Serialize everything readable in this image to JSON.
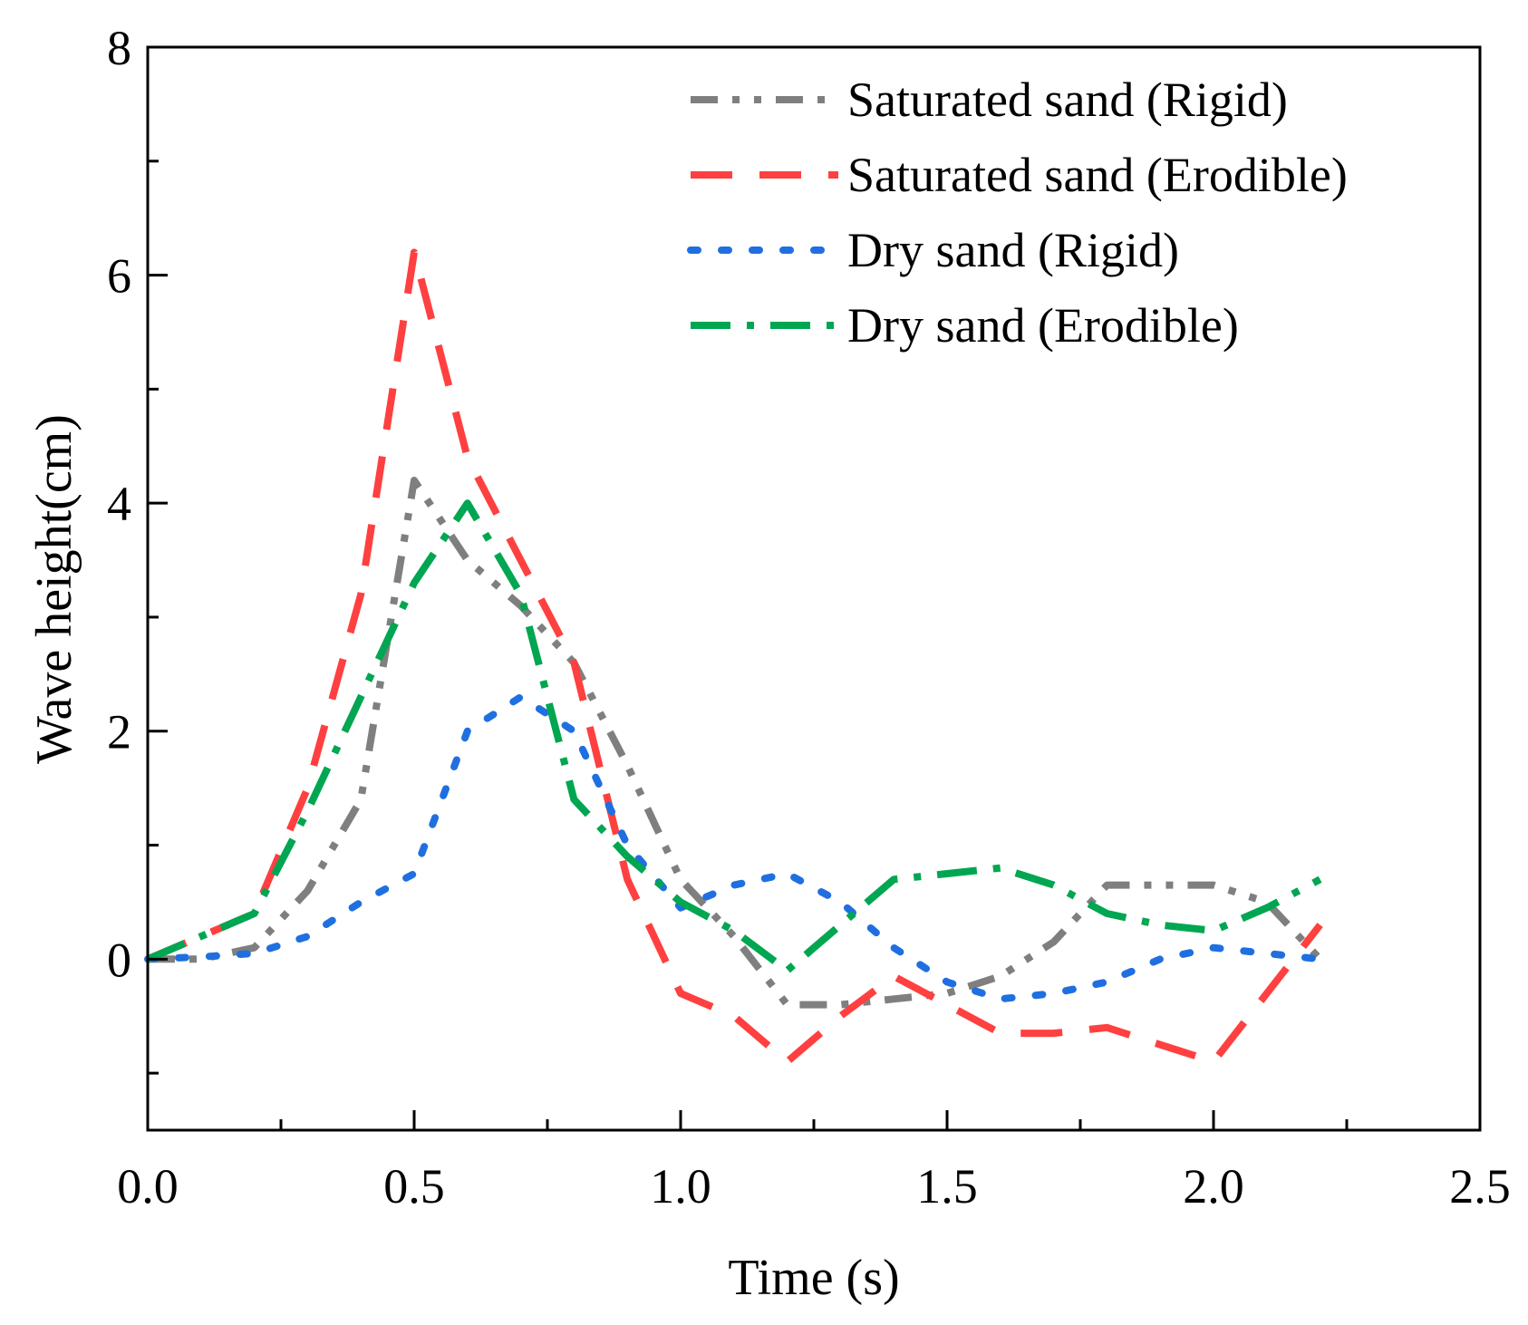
{
  "chart_data": {
    "type": "line",
    "title": "",
    "xlabel": "Time (s)",
    "ylabel": "Wave height(cm)",
    "xlim": [
      0.0,
      2.5
    ],
    "ylim": [
      -1.5,
      8
    ],
    "x_ticks": [
      0.0,
      0.5,
      1.0,
      1.5,
      2.0,
      2.5
    ],
    "x_tick_labels": [
      "0.0",
      "0.5",
      "1.0",
      "1.5",
      "2.0",
      "2.5"
    ],
    "x_minor_ticks": [
      0.25,
      0.75,
      1.25,
      1.75,
      2.25
    ],
    "y_ticks": [
      0,
      2,
      4,
      6,
      8
    ],
    "y_tick_labels": [
      "0",
      "2",
      "4",
      "6",
      "8"
    ],
    "y_minor_ticks": [
      -1,
      1,
      3,
      5,
      7
    ],
    "grid": false,
    "legend_position": "top-right",
    "series": [
      {
        "name": "Saturated sand (Rigid)",
        "color": "#7f7f7f",
        "style": "dash-dot-dot",
        "x": [
          0.0,
          0.1,
          0.2,
          0.3,
          0.4,
          0.5,
          0.6,
          0.7,
          0.8,
          0.9,
          1.0,
          1.1,
          1.2,
          1.3,
          1.4,
          1.5,
          1.6,
          1.7,
          1.8,
          1.9,
          2.0,
          2.1,
          2.2
        ],
        "values": [
          0.0,
          0.0,
          0.1,
          0.6,
          1.4,
          4.2,
          3.5,
          3.1,
          2.6,
          1.7,
          0.7,
          0.2,
          -0.4,
          -0.4,
          -0.35,
          -0.3,
          -0.15,
          0.15,
          0.65,
          0.65,
          0.65,
          0.5,
          0.0
        ]
      },
      {
        "name": "Saturated sand (Erodible)",
        "color": "#ff4040",
        "style": "dash",
        "x": [
          0.0,
          0.1,
          0.2,
          0.3,
          0.4,
          0.5,
          0.6,
          0.7,
          0.8,
          0.9,
          1.0,
          1.1,
          1.2,
          1.3,
          1.4,
          1.5,
          1.6,
          1.7,
          1.8,
          1.9,
          2.0,
          2.1,
          2.2
        ],
        "values": [
          0.0,
          0.2,
          0.4,
          1.5,
          3.2,
          6.2,
          4.4,
          3.5,
          2.6,
          0.7,
          -0.3,
          -0.5,
          -0.9,
          -0.5,
          -0.15,
          -0.4,
          -0.65,
          -0.65,
          -0.6,
          -0.75,
          -0.9,
          -0.3,
          0.3
        ]
      },
      {
        "name": "Dry sand (Rigid)",
        "color": "#1f6fe0",
        "style": "dot",
        "x": [
          0.0,
          0.1,
          0.2,
          0.3,
          0.4,
          0.5,
          0.6,
          0.7,
          0.8,
          0.9,
          1.0,
          1.1,
          1.2,
          1.3,
          1.4,
          1.5,
          1.6,
          1.7,
          1.8,
          1.9,
          2.0,
          2.1,
          2.2
        ],
        "values": [
          0.0,
          0.02,
          0.05,
          0.2,
          0.5,
          0.75,
          2.0,
          2.3,
          2.0,
          1.0,
          0.45,
          0.65,
          0.75,
          0.5,
          0.1,
          -0.2,
          -0.35,
          -0.3,
          -0.2,
          0.0,
          0.1,
          0.05,
          0.0
        ]
      },
      {
        "name": "Dry sand (Erodible)",
        "color": "#00a651",
        "style": "dash-dot",
        "x": [
          0.0,
          0.1,
          0.2,
          0.3,
          0.4,
          0.5,
          0.6,
          0.7,
          0.8,
          0.9,
          1.0,
          1.1,
          1.2,
          1.3,
          1.4,
          1.5,
          1.6,
          1.7,
          1.8,
          1.9,
          2.0,
          2.1,
          2.2
        ],
        "values": [
          0.0,
          0.2,
          0.4,
          1.3,
          2.3,
          3.3,
          4.0,
          3.2,
          1.4,
          0.9,
          0.5,
          0.25,
          -0.1,
          0.3,
          0.7,
          0.75,
          0.8,
          0.65,
          0.4,
          0.3,
          0.25,
          0.45,
          0.7
        ]
      }
    ]
  }
}
